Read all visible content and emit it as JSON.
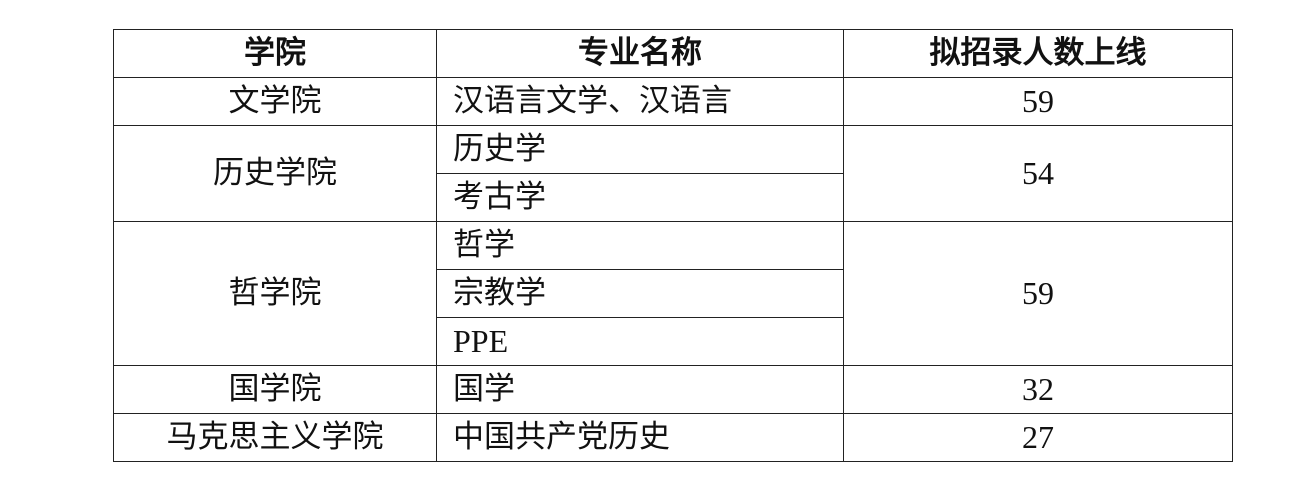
{
  "table": {
    "headers": [
      "学院",
      "专业名称",
      "拟招录人数上线"
    ],
    "groups": [
      {
        "college": "文学院",
        "majors": [
          "汉语言文学、汉语言"
        ],
        "quota": "59"
      },
      {
        "college": "历史学院",
        "majors": [
          "历史学",
          "考古学"
        ],
        "quota": "54"
      },
      {
        "college": "哲学院",
        "majors": [
          "哲学",
          "宗教学",
          "PPE"
        ],
        "quota": "59"
      },
      {
        "college": "国学院",
        "majors": [
          "国学"
        ],
        "quota": "32"
      },
      {
        "college": "马克思主义学院",
        "majors": [
          "中国共产党历史"
        ],
        "quota": "27"
      }
    ]
  }
}
